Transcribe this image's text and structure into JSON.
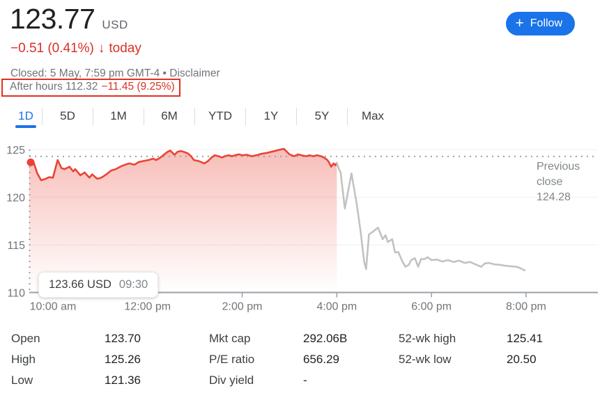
{
  "header": {
    "price": "123.77",
    "currency": "USD",
    "change": "−0.51 (0.41%)",
    "change_arrow": "↓",
    "change_period": "today",
    "closed_line": "Closed: 5 May, 7:59 pm GMT-4 •",
    "disclaimer": "Disclaimer",
    "after_hours": "After hours 112.32",
    "after_hours_change": "−11.45 (9.25%)",
    "follow_label": "Follow",
    "follow_icon": "+"
  },
  "tabs": [
    {
      "label": "1D",
      "active": true
    },
    {
      "label": "5D",
      "active": false
    },
    {
      "label": "1M",
      "active": false
    },
    {
      "label": "6M",
      "active": false
    },
    {
      "label": "YTD",
      "active": false
    },
    {
      "label": "1Y",
      "active": false
    },
    {
      "label": "5Y",
      "active": false
    },
    {
      "label": "Max",
      "active": false
    }
  ],
  "chart_data": {
    "type": "line",
    "title": "1D intraday price chart",
    "x_axis": {
      "labels": [
        "10:00 am",
        "12:00 pm",
        "2:00 pm",
        "4:00 pm",
        "6:00 pm",
        "8:00 pm"
      ],
      "hours": [
        10,
        12,
        14,
        16,
        18,
        20
      ],
      "range_hours": [
        9.5,
        21.5
      ]
    },
    "y_axis": {
      "ticks": [
        125,
        120,
        115,
        110
      ],
      "gridlines": [
        125,
        120,
        115
      ],
      "range": [
        110,
        125.8
      ]
    },
    "previous_close": 124.28,
    "annotation": {
      "label": "Previous close",
      "value": "124.28"
    },
    "tooltip": {
      "price": "123.66 USD",
      "time": "09:30"
    },
    "marker": {
      "t": 9.53,
      "price": 123.66
    },
    "colors": {
      "regular": "#ea4335",
      "after_hours_line": "#c2c2c2",
      "fill_top": "rgba(234,67,53,0.35)",
      "fill_bottom": "rgba(234,67,53,0)",
      "axis": "#9aa0a6",
      "gridline": "#efefef",
      "dotted": "#9aa0a6",
      "tick_text": "#70757a"
    },
    "series": [
      {
        "name": "regular-hours",
        "color": "#ea4335",
        "fill": true,
        "points": [
          [
            9.5,
            123.66
          ],
          [
            9.58,
            123.85
          ],
          [
            9.67,
            122.5
          ],
          [
            9.75,
            121.78
          ],
          [
            9.83,
            121.9
          ],
          [
            9.92,
            122.1
          ],
          [
            10.0,
            122.05
          ],
          [
            10.1,
            123.9
          ],
          [
            10.18,
            123.05
          ],
          [
            10.25,
            122.95
          ],
          [
            10.35,
            123.2
          ],
          [
            10.43,
            122.7
          ],
          [
            10.47,
            122.95
          ],
          [
            10.58,
            122.3
          ],
          [
            10.67,
            122.6
          ],
          [
            10.77,
            122.05
          ],
          [
            10.83,
            122.4
          ],
          [
            10.93,
            121.95
          ],
          [
            11.0,
            122.0
          ],
          [
            11.07,
            122.2
          ],
          [
            11.13,
            122.4
          ],
          [
            11.23,
            122.8
          ],
          [
            11.33,
            122.95
          ],
          [
            11.42,
            123.2
          ],
          [
            11.52,
            123.4
          ],
          [
            11.62,
            123.55
          ],
          [
            11.72,
            123.4
          ],
          [
            11.82,
            123.7
          ],
          [
            11.92,
            123.8
          ],
          [
            12.02,
            123.9
          ],
          [
            12.12,
            124.05
          ],
          [
            12.18,
            123.9
          ],
          [
            12.27,
            124.15
          ],
          [
            12.33,
            124.4
          ],
          [
            12.42,
            124.75
          ],
          [
            12.48,
            124.9
          ],
          [
            12.53,
            124.65
          ],
          [
            12.57,
            124.45
          ],
          [
            12.63,
            124.75
          ],
          [
            12.7,
            124.85
          ],
          [
            12.77,
            124.75
          ],
          [
            12.85,
            124.6
          ],
          [
            12.92,
            124.3
          ],
          [
            12.98,
            123.9
          ],
          [
            13.07,
            123.8
          ],
          [
            13.13,
            123.7
          ],
          [
            13.2,
            123.55
          ],
          [
            13.28,
            123.8
          ],
          [
            13.35,
            124.15
          ],
          [
            13.42,
            124.4
          ],
          [
            13.5,
            124.3
          ],
          [
            13.57,
            124.15
          ],
          [
            13.63,
            124.3
          ],
          [
            13.72,
            124.4
          ],
          [
            13.78,
            124.3
          ],
          [
            13.85,
            124.4
          ],
          [
            13.93,
            124.5
          ],
          [
            14.0,
            124.4
          ],
          [
            14.1,
            124.45
          ],
          [
            14.2,
            124.3
          ],
          [
            14.3,
            124.4
          ],
          [
            14.4,
            124.55
          ],
          [
            14.52,
            124.65
          ],
          [
            14.65,
            124.8
          ],
          [
            14.88,
            125.08
          ],
          [
            15.0,
            124.5
          ],
          [
            15.1,
            124.3
          ],
          [
            15.18,
            124.5
          ],
          [
            15.25,
            124.4
          ],
          [
            15.35,
            124.3
          ],
          [
            15.42,
            124.4
          ],
          [
            15.5,
            124.3
          ],
          [
            15.58,
            124.4
          ],
          [
            15.67,
            124.3
          ],
          [
            15.73,
            124.15
          ],
          [
            15.8,
            123.9
          ],
          [
            15.83,
            123.7
          ],
          [
            15.88,
            123.2
          ],
          [
            15.93,
            123.55
          ],
          [
            15.97,
            123.35
          ],
          [
            16.0,
            123.6
          ]
        ]
      },
      {
        "name": "after-hours",
        "color": "#c2c2c2",
        "fill": false,
        "points": [
          [
            16.0,
            123.6
          ],
          [
            16.05,
            122.9
          ],
          [
            16.08,
            122.6
          ],
          [
            16.17,
            118.8
          ],
          [
            16.31,
            122.5
          ],
          [
            16.42,
            119.3
          ],
          [
            16.5,
            116.5
          ],
          [
            16.58,
            113.2
          ],
          [
            16.62,
            112.45
          ],
          [
            16.68,
            116.1
          ],
          [
            16.77,
            116.4
          ],
          [
            16.87,
            116.8
          ],
          [
            16.97,
            115.6
          ],
          [
            17.03,
            116.0
          ],
          [
            17.08,
            115.3
          ],
          [
            17.17,
            115.6
          ],
          [
            17.23,
            114.2
          ],
          [
            17.3,
            114.25
          ],
          [
            17.38,
            113.3
          ],
          [
            17.45,
            112.7
          ],
          [
            17.52,
            112.9
          ],
          [
            17.57,
            113.4
          ],
          [
            17.65,
            113.6
          ],
          [
            17.72,
            112.7
          ],
          [
            17.78,
            113.5
          ],
          [
            17.85,
            113.5
          ],
          [
            17.92,
            113.7
          ],
          [
            18.0,
            113.4
          ],
          [
            18.12,
            113.45
          ],
          [
            18.23,
            113.25
          ],
          [
            18.35,
            113.4
          ],
          [
            18.47,
            113.2
          ],
          [
            18.58,
            113.35
          ],
          [
            18.7,
            113.1
          ],
          [
            18.82,
            113.2
          ],
          [
            18.93,
            112.95
          ],
          [
            19.05,
            112.7
          ],
          [
            19.13,
            113.05
          ],
          [
            19.22,
            113.1
          ],
          [
            19.33,
            112.95
          ],
          [
            19.45,
            112.9
          ],
          [
            19.57,
            112.8
          ],
          [
            19.68,
            112.75
          ],
          [
            19.8,
            112.7
          ],
          [
            19.88,
            112.55
          ],
          [
            19.97,
            112.32
          ]
        ]
      }
    ]
  },
  "stats": {
    "columns": [
      [
        {
          "label": "Open",
          "value": "123.70"
        },
        {
          "label": "High",
          "value": "125.26"
        },
        {
          "label": "Low",
          "value": "121.36"
        }
      ],
      [
        {
          "label": "Mkt cap",
          "value": "292.06B"
        },
        {
          "label": "P/E ratio",
          "value": "656.29"
        },
        {
          "label": "Div yield",
          "value": "-"
        }
      ],
      [
        {
          "label": "52-wk high",
          "value": "125.41"
        },
        {
          "label": "52-wk low",
          "value": "20.50"
        }
      ]
    ]
  },
  "colors": {
    "accent_blue": "#1a73e8",
    "negative_red": "#d93025",
    "annotation_box_red": "#e12f21",
    "text_primary": "#202124",
    "text_secondary": "#70757a"
  }
}
